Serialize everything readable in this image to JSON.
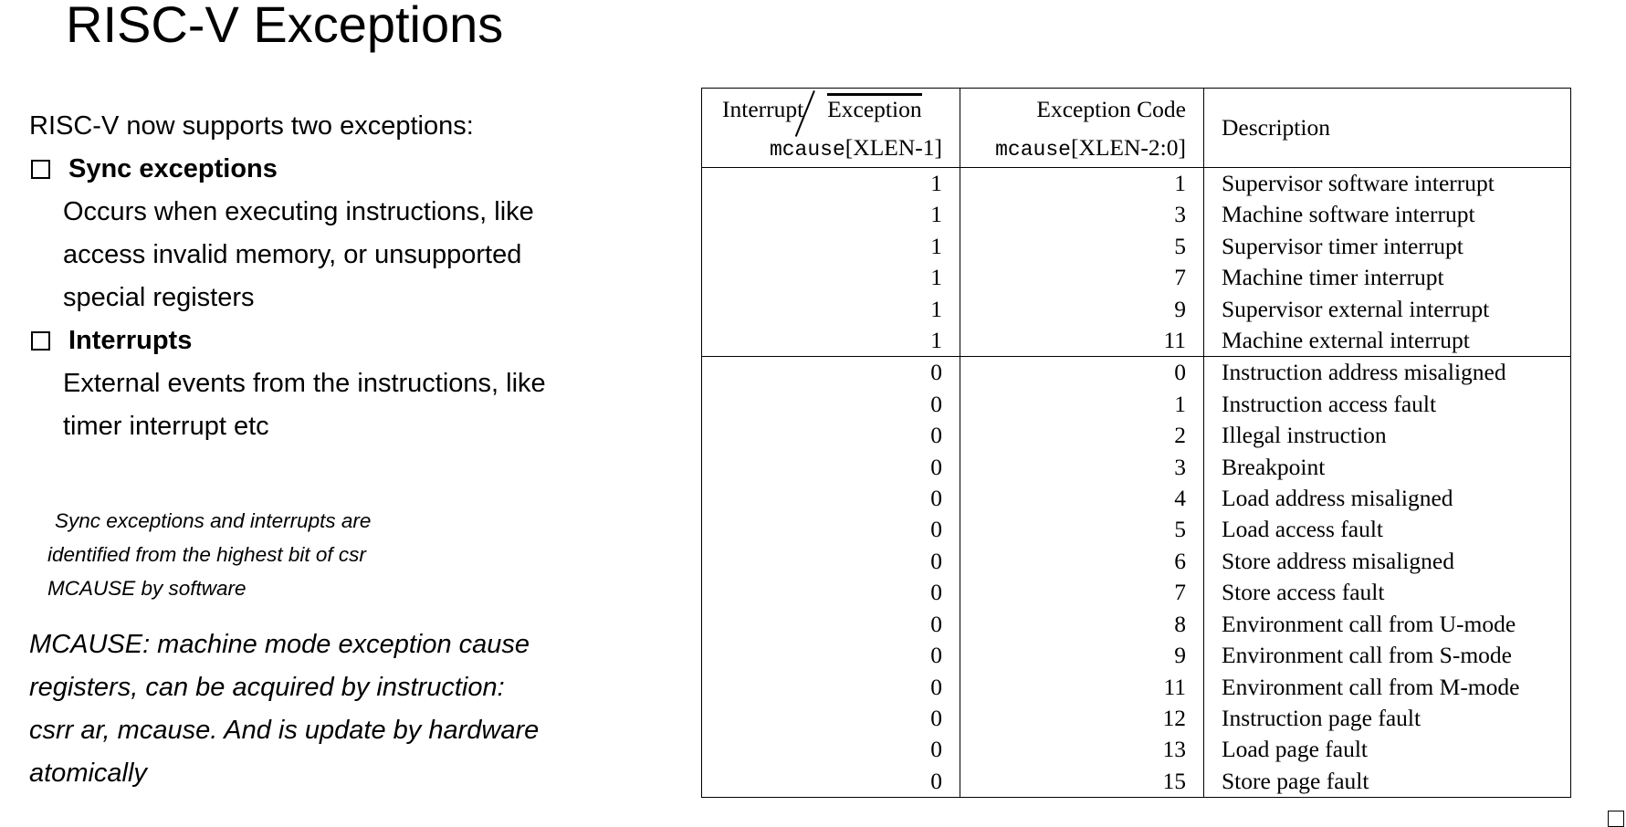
{
  "title": "RISC-V Exceptions",
  "left": {
    "intro": "RISC-V now supports two exceptions:",
    "sync_heading": "Sync exceptions",
    "sync_lines": [
      "Occurs when executing instructions, like",
      "access invalid memory, or unsupported",
      "special registers"
    ],
    "interrupts_heading": "Interrupts",
    "interrupt_lines": [
      "External events from the instructions, like",
      "timer interrupt etc"
    ],
    "note_lines": [
      "Sync exceptions and interrupts are",
      "identified from the highest bit of csr",
      "MCAUSE by software"
    ],
    "mcause_lines": [
      "MCAUSE: machine mode exception cause",
      "registers, can be acquired by instruction:",
      "csrr ar, mcause. And is update by hardware",
      "atomically"
    ]
  },
  "table": {
    "header": {
      "col1_interrupt": "Interrupt",
      "col1_exception": "Exception",
      "col1_field_mono": "mcause",
      "col1_field_rest": "[XLEN-1]",
      "col2_title": "Exception Code",
      "col2_field_mono": "mcause",
      "col2_field_rest": "[XLEN-2:0]",
      "col3_title": "Description"
    },
    "rows": [
      {
        "interrupt": "1",
        "code": "1",
        "description": "Supervisor software interrupt"
      },
      {
        "interrupt": "1",
        "code": "3",
        "description": "Machine software interrupt"
      },
      {
        "interrupt": "1",
        "code": "5",
        "description": "Supervisor timer interrupt"
      },
      {
        "interrupt": "1",
        "code": "7",
        "description": "Machine timer interrupt"
      },
      {
        "interrupt": "1",
        "code": "9",
        "description": "Supervisor external interrupt"
      },
      {
        "interrupt": "1",
        "code": "11",
        "description": "Machine external interrupt"
      },
      {
        "interrupt": "0",
        "code": "0",
        "description": "Instruction address misaligned"
      },
      {
        "interrupt": "0",
        "code": "1",
        "description": "Instruction access fault"
      },
      {
        "interrupt": "0",
        "code": "2",
        "description": "Illegal instruction"
      },
      {
        "interrupt": "0",
        "code": "3",
        "description": "Breakpoint"
      },
      {
        "interrupt": "0",
        "code": "4",
        "description": "Load address misaligned"
      },
      {
        "interrupt": "0",
        "code": "5",
        "description": "Load access fault"
      },
      {
        "interrupt": "0",
        "code": "6",
        "description": "Store address misaligned"
      },
      {
        "interrupt": "0",
        "code": "7",
        "description": "Store access fault"
      },
      {
        "interrupt": "0",
        "code": "8",
        "description": "Environment call from U-mode"
      },
      {
        "interrupt": "0",
        "code": "9",
        "description": "Environment call from S-mode"
      },
      {
        "interrupt": "0",
        "code": "11",
        "description": "Environment call from M-mode"
      },
      {
        "interrupt": "0",
        "code": "12",
        "description": "Instruction page fault"
      },
      {
        "interrupt": "0",
        "code": "13",
        "description": "Load page fault"
      },
      {
        "interrupt": "0",
        "code": "15",
        "description": "Store page fault"
      }
    ]
  }
}
